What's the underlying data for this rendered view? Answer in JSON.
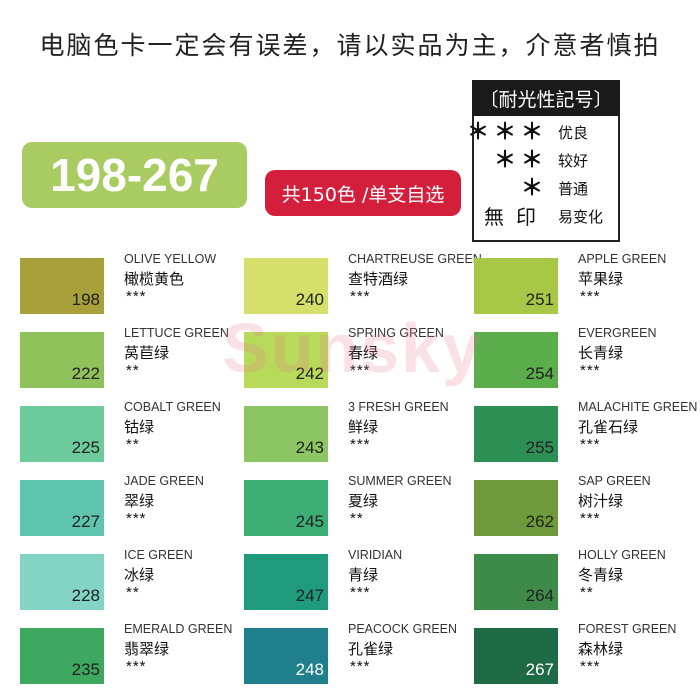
{
  "notice": "电脑色卡一定会有误差，请以实品为主，介意者慎拍",
  "range_badge": "198-267",
  "count_badge": "共150色 /单支自选",
  "legend": {
    "title": "〔耐光性記号〕",
    "rows": [
      {
        "symbol": "＊＊＊",
        "label": "优良"
      },
      {
        "symbol": "＊＊",
        "label": "较好"
      },
      {
        "symbol": "＊",
        "label": "普通"
      },
      {
        "symbol": "無印",
        "label": "易变化"
      }
    ]
  },
  "watermark": "Sunsky",
  "swatches": [
    {
      "number": "198",
      "en": "OLIVE YELLOW",
      "cn": "橄榄黄色",
      "rating": "***",
      "color": "#a8a03a"
    },
    {
      "number": "222",
      "en": "LETTUCE GREEN",
      "cn": "莴苣绿",
      "rating": "**",
      "color": "#8fc25a"
    },
    {
      "number": "225",
      "en": "COBALT GREEN",
      "cn": "钴绿",
      "rating": "**",
      "color": "#6ecb9b"
    },
    {
      "number": "227",
      "en": "JADE GREEN",
      "cn": "翠绿",
      "rating": "***",
      "color": "#5ec4ae"
    },
    {
      "number": "228",
      "en": "ICE GREEN",
      "cn": "冰绿",
      "rating": "**",
      "color": "#84d4c6"
    },
    {
      "number": "235",
      "en": "EMERALD GREEN",
      "cn": "翡翠绿",
      "rating": "***",
      "color": "#3fa860"
    },
    {
      "number": "240",
      "en": "CHARTREUSE GREEN",
      "cn": "查特酒绿",
      "rating": "***",
      "color": "#d4e06a"
    },
    {
      "number": "242",
      "en": "SPRING GREEN",
      "cn": "春绿",
      "rating": "***",
      "color": "#b8da5a"
    },
    {
      "number": "243",
      "en": "3 FRESH GREEN",
      "cn": "鲜绿",
      "rating": "***",
      "color": "#8cc664"
    },
    {
      "number": "245",
      "en": "SUMMER GREEN",
      "cn": "夏绿",
      "rating": "**",
      "color": "#3cae74"
    },
    {
      "number": "247",
      "en": "VIRIDIAN",
      "cn": "青绿",
      "rating": "***",
      "color": "#1f9a7c"
    },
    {
      "number": "248",
      "en": "PEACOCK GREEN",
      "cn": "孔雀绿",
      "rating": "***",
      "color": "#1f7f8a"
    },
    {
      "number": "251",
      "en": "APPLE GREEN",
      "cn": "苹果绿",
      "rating": "***",
      "color": "#a6c846"
    },
    {
      "number": "254",
      "en": "EVERGREEN",
      "cn": "长青绿",
      "rating": "***",
      "color": "#5cae4c"
    },
    {
      "number": "255",
      "en": "MALACHITE GREEN",
      "cn": "孔雀石绿",
      "rating": "***",
      "color": "#2e8f55"
    },
    {
      "number": "262",
      "en": "SAP GREEN",
      "cn": "树汁绿",
      "rating": "***",
      "color": "#6e9a3c"
    },
    {
      "number": "264",
      "en": "HOLLY GREEN",
      "cn": "冬青绿",
      "rating": "**",
      "color": "#3e8a48"
    },
    {
      "number": "267",
      "en": "FOREST GREEN",
      "cn": "森林绿",
      "rating": "***",
      "color": "#1d6a44"
    }
  ]
}
